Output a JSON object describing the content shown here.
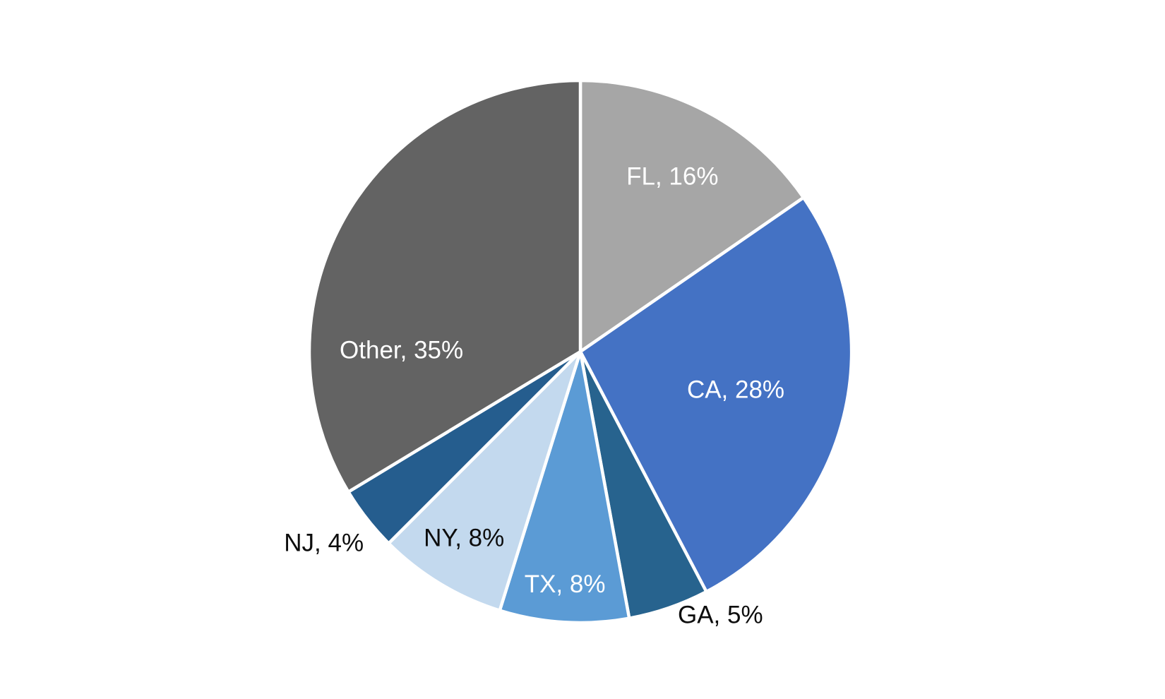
{
  "chart_data": {
    "type": "pie",
    "title": "",
    "categories": [
      "FL",
      "CA",
      "GA",
      "TX",
      "NY",
      "NJ",
      "Other"
    ],
    "values": [
      16,
      28,
      5,
      8,
      8,
      4,
      35
    ],
    "slice_labels": [
      "FL, 16%",
      "CA, 28%",
      "GA, 5%",
      "TX, 8%",
      "NY, 8%",
      "NJ, 4%",
      "Other, 35%"
    ],
    "colors": [
      "#a6a6a6",
      "#4472c4",
      "#27638e",
      "#5b9bd5",
      "#c3d9ee",
      "#255d8e",
      "#636363"
    ],
    "label_colors": [
      "#ffffff",
      "#ffffff",
      "#0d0d0d",
      "#ffffff",
      "#0d0d0d",
      "#0d0d0d",
      "#ffffff"
    ],
    "start_angle_deg": 0,
    "direction": "clockwise",
    "legend_position": "none",
    "background_color": "#ffffff",
    "slice_border_color": "#ffffff"
  }
}
